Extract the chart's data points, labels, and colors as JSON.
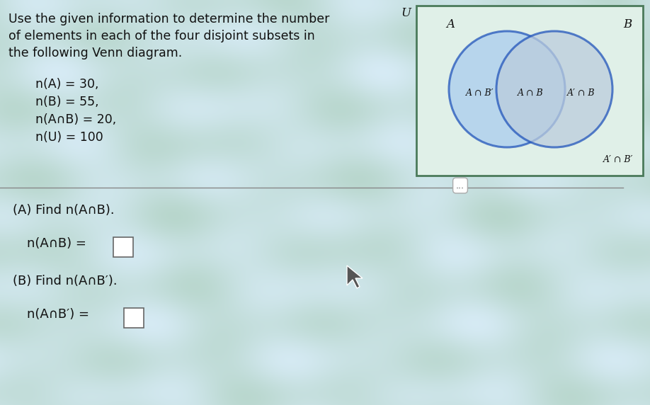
{
  "bg_color_light": "#ddeedd",
  "bg_color_wave": "#c8dde8",
  "title_text_line1": "Use the given information to determine the number",
  "title_text_line2": "of elements in each of the four disjoint subsets in",
  "title_text_line3": "the following Venn diagram.",
  "given_line1": "n(A) = 30,",
  "given_line2": "n(B) = 55,",
  "given_line3": "n(A∩B) = 20,",
  "given_line4": "n(U) = 100",
  "part_a_label": "(A) Find n(A∩B).",
  "part_a_eq": "n(A∩B) =",
  "part_b_label": "(B) Find n(A∩B′).",
  "part_b_eq": "n(A∩B′) =",
  "venn_rect_edge": "#4a7a5a",
  "venn_rect_face": "#e0f0e8",
  "circle_edge": "#2255bb",
  "circle_A_face": "#88bbdd",
  "circle_B_face": "#99bbcc",
  "intersection_face": "#aaccdd",
  "label_AnBprime": "A ∩ B′",
  "label_AnB": "A ∩ B",
  "label_AprimenB": "A′ ∩ B",
  "label_AprimenBprime": "A′ ∩ B′",
  "font_color": "#111111",
  "divider_color": "#888888",
  "dots_text": "...",
  "cursor_color": "#333333"
}
